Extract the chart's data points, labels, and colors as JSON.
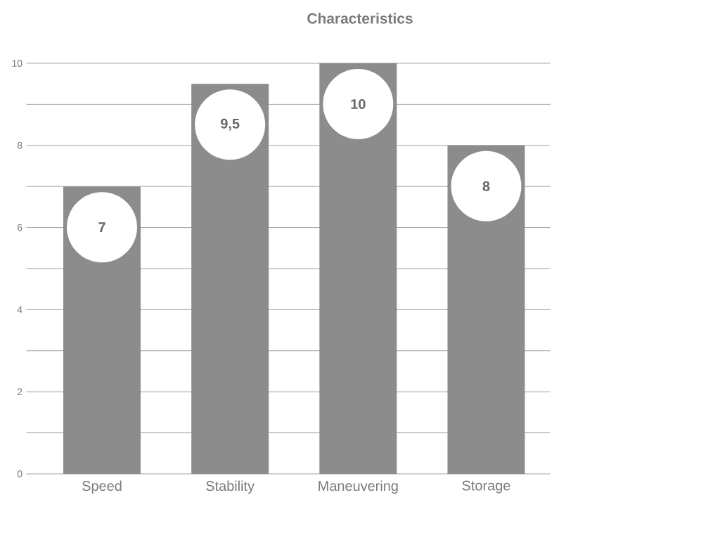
{
  "chart_data": {
    "type": "bar",
    "title": "Characteristics",
    "categories": [
      "Speed",
      "Stability",
      "Maneuvering",
      "Storage"
    ],
    "values": [
      7,
      9.5,
      10,
      8
    ],
    "value_labels": [
      "7",
      "9,5",
      "10",
      "8"
    ],
    "color": "#8c8c8c",
    "ylim": [
      0,
      10
    ],
    "yticks": [
      0,
      {
        "value": 1,
        "label": null
      },
      2,
      {
        "value": 3,
        "label": null
      },
      4,
      {
        "value": 5,
        "label": null
      },
      6,
      {
        "value": 7,
        "label": null
      },
      8,
      {
        "value": 9,
        "label": null
      },
      10
    ],
    "grid": true
  }
}
